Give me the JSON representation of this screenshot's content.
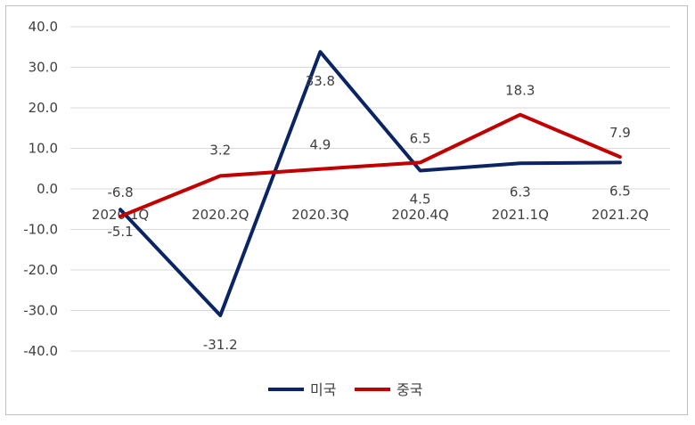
{
  "chart_data": {
    "type": "line",
    "title": "",
    "xlabel": "",
    "ylabel": "",
    "categories": [
      "2020.1Q",
      "2020.2Q",
      "2020.3Q",
      "2020.4Q",
      "2021.1Q",
      "2021.2Q"
    ],
    "ylim": [
      -40,
      40
    ],
    "yticks": [
      "40.0",
      "30.0",
      "20.0",
      "10.0",
      "0.0",
      "-10.0",
      "-20.0",
      "-30.0",
      "-40.0"
    ],
    "grid": true,
    "legend": "bottom",
    "series": [
      {
        "name": "미국",
        "color": "#0b2463",
        "values": [
          -5.1,
          -31.2,
          33.8,
          4.5,
          6.3,
          6.5
        ],
        "labels": [
          "-5.1",
          "-31.2",
          "33.8",
          "4.5",
          "6.3",
          "6.5"
        ]
      },
      {
        "name": "중국",
        "color": "#c00000",
        "values": [
          -6.8,
          3.2,
          4.9,
          6.5,
          18.3,
          7.9
        ],
        "labels": [
          "-6.8",
          "3.2",
          "4.9",
          "6.5",
          "18.3",
          "7.9"
        ]
      }
    ]
  }
}
